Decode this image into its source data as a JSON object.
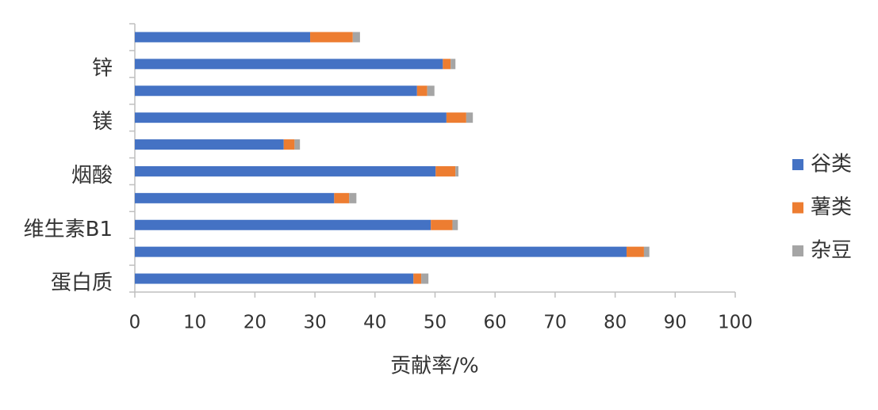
{
  "chart_data": {
    "type": "bar",
    "orientation": "horizontal",
    "stacked": true,
    "x_label": "贡献率/%",
    "categories": [
      "蛋白质",
      null,
      "维生素B1",
      null,
      "烟酸",
      null,
      "镁",
      null,
      "锌",
      null
    ],
    "series": [
      {
        "name": "谷类",
        "color": "#4472c4",
        "values": [
          46.4,
          81.9,
          49.3,
          33.2,
          50.1,
          24.8,
          51.9,
          47.0,
          51.3,
          29.2
        ]
      },
      {
        "name": "薯类",
        "color": "#ed7d31",
        "values": [
          1.3,
          2.9,
          3.6,
          2.5,
          3.3,
          1.8,
          3.3,
          1.7,
          1.3,
          7.1
        ]
      },
      {
        "name": "杂豆",
        "color": "#a5a5a5",
        "values": [
          1.2,
          0.9,
          0.9,
          1.2,
          0.5,
          0.9,
          1.1,
          1.2,
          0.8,
          1.2
        ]
      }
    ],
    "xlim": [
      0,
      100
    ],
    "xticks": [
      0,
      10,
      20,
      30,
      40,
      50,
      60,
      70,
      80,
      90,
      100
    ],
    "legend": "right"
  }
}
